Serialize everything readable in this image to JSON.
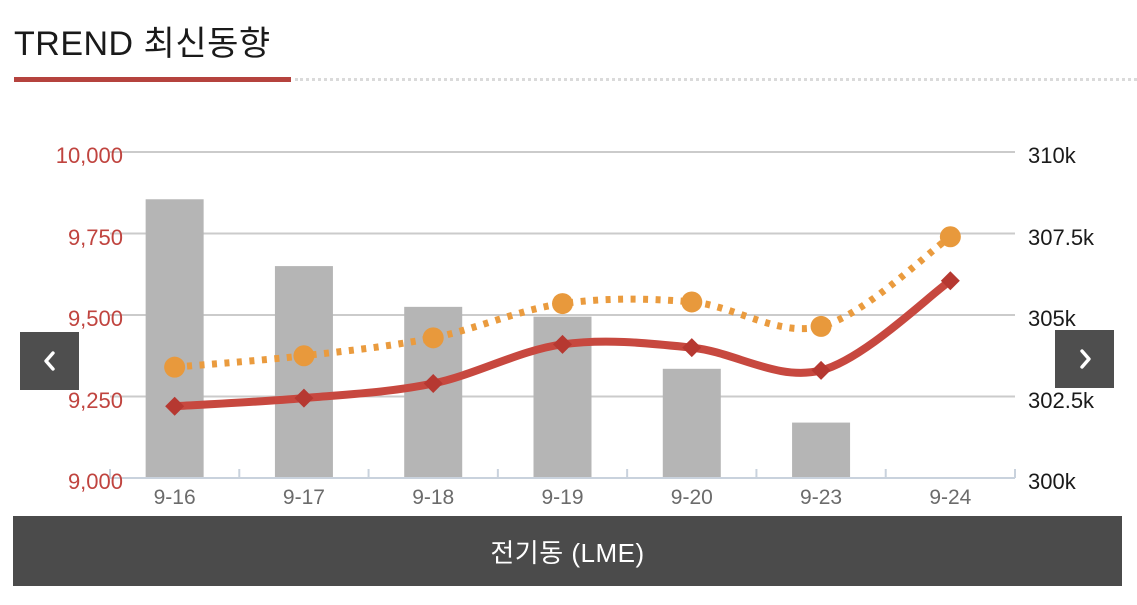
{
  "header": {
    "title": "TREND 최신동향"
  },
  "panel": {
    "caption": "전기동 (LME)"
  },
  "nav": {
    "prev_icon": "chevron-left",
    "next_icon": "chevron-right"
  },
  "colors": {
    "accent_red": "#b5433e",
    "grid": "#cbcbcb",
    "axis_line": "#c9d2dd",
    "bar": "#b5b5b5",
    "line_red": "#c7483f",
    "marker_red": "#b63831",
    "line_orange": "#ea9b3e",
    "marker_orange": "#e8993c",
    "left_tick_text": "#c0443f",
    "right_tick_text": "#1a1a1a",
    "x_tick_text": "#6b6b6b",
    "footer_bg": "#4b4b4b",
    "nav_bg": "#4e4e4e"
  },
  "chart_data": {
    "type": "combo",
    "title": "",
    "legend": false,
    "grid": true,
    "categories": [
      "9-16",
      "9-17",
      "9-18",
      "9-19",
      "9-20",
      "9-23",
      "9-24"
    ],
    "series": [
      {
        "name": "bars",
        "type": "bar",
        "axis": "left",
        "color": "#b5b5b5",
        "values": [
          9855,
          9650,
          9525,
          9495,
          9335,
          9170,
          null
        ]
      },
      {
        "name": "solid_line",
        "type": "line",
        "line_style": "solid",
        "axis": "left",
        "color": "#c7483f",
        "marker": "diamond",
        "marker_color": "#b63831",
        "values": [
          9220,
          9245,
          9290,
          9410,
          9400,
          9330,
          9605
        ]
      },
      {
        "name": "dotted_line",
        "type": "line",
        "line_style": "dotted",
        "axis": "right",
        "color": "#ea9b3e",
        "marker": "circle",
        "marker_color": "#e8993c",
        "unit": "k",
        "values": [
          303.4,
          303.75,
          304.3,
          305.35,
          305.4,
          304.65,
          307.4
        ]
      }
    ],
    "left_axis": {
      "min": 9000,
      "max": 10000,
      "tick_step": 250,
      "tick_labels": [
        "10,000",
        "9,750",
        "9,500",
        "9,250",
        "9,000"
      ]
    },
    "right_axis": {
      "min": 300,
      "max": 310,
      "tick_step": 2.5,
      "tick_labels": [
        "310k",
        "307.5k",
        "305k",
        "302.5k",
        "300k"
      ]
    }
  }
}
